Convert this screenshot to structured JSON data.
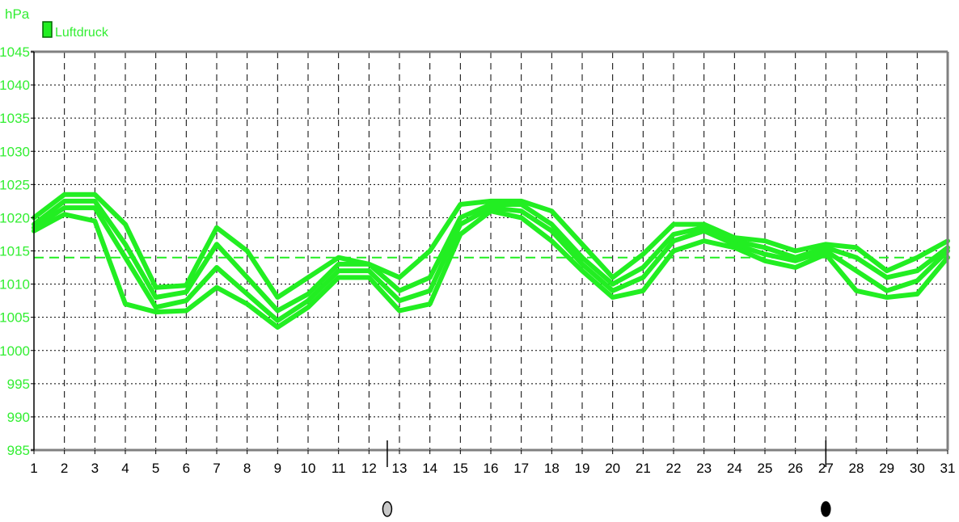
{
  "chart_data": {
    "type": "line",
    "ylabel": "hPa",
    "legend": {
      "label": "Luftdruck",
      "position": "top-left"
    },
    "ylim": [
      985,
      1045
    ],
    "yticks": [
      1045,
      1040,
      1035,
      1030,
      1025,
      1020,
      1015,
      1010,
      1005,
      1000,
      995,
      990,
      985
    ],
    "x": [
      1,
      2,
      3,
      4,
      5,
      6,
      7,
      8,
      9,
      10,
      11,
      12,
      13,
      14,
      15,
      16,
      17,
      18,
      19,
      20,
      21,
      22,
      23,
      24,
      25,
      26,
      27,
      28,
      29,
      30,
      31
    ],
    "grid": true,
    "reference_line": {
      "value": 1014,
      "style": "dashed"
    },
    "series": [
      {
        "values": [
          1020,
          1023.5,
          1023.5,
          1019,
          1009.5,
          1009.8,
          1018.5,
          1015,
          1008,
          1011,
          1014,
          1013,
          1011,
          1015,
          1022,
          1022.5,
          1022.5,
          1021,
          1016,
          1011,
          1014.5,
          1019,
          1019,
          1017,
          1016.5,
          1015,
          1016,
          1015.5,
          1012,
          1014,
          1016.5
        ]
      },
      {
        "values": [
          1019,
          1022.5,
          1022.5,
          1016,
          1008,
          1008.8,
          1016,
          1011,
          1006,
          1008.5,
          1013,
          1013,
          1009,
          1011,
          1020,
          1022,
          1022,
          1019,
          1014,
          1010,
          1012.5,
          1017.5,
          1018.5,
          1016.5,
          1015.5,
          1014,
          1015.5,
          1014,
          1011,
          1012,
          1015.5
        ]
      },
      {
        "values": [
          1018.5,
          1021.5,
          1021.5,
          1014,
          1006.5,
          1007.5,
          1012.5,
          1008.5,
          1004.5,
          1007.5,
          1012,
          1012,
          1007.5,
          1009,
          1019,
          1021.5,
          1021,
          1018,
          1013,
          1009,
          1011,
          1016.5,
          1018,
          1016,
          1014.5,
          1013.5,
          1015,
          1012,
          1009,
          1010.5,
          1015
        ]
      },
      {
        "values": [
          1018,
          1020.5,
          1019.5,
          1007,
          1005.8,
          1006,
          1009.5,
          1007,
          1003.5,
          1006.5,
          1011,
          1011,
          1006,
          1007,
          1017.5,
          1021,
          1020,
          1016.5,
          1012,
          1008,
          1009,
          1015,
          1016.5,
          1015.5,
          1013.5,
          1012.5,
          1014.5,
          1009,
          1008,
          1008.5,
          1014
        ]
      }
    ],
    "moon_markers": [
      {
        "x": 12.6,
        "phase": "full-moon-icon"
      },
      {
        "x": 27,
        "phase": "new-moon-icon"
      }
    ],
    "colors": {
      "series": "#22ee22",
      "ytick": "#33ee33",
      "axis_frame": "#808080",
      "grid": "#000000"
    }
  }
}
